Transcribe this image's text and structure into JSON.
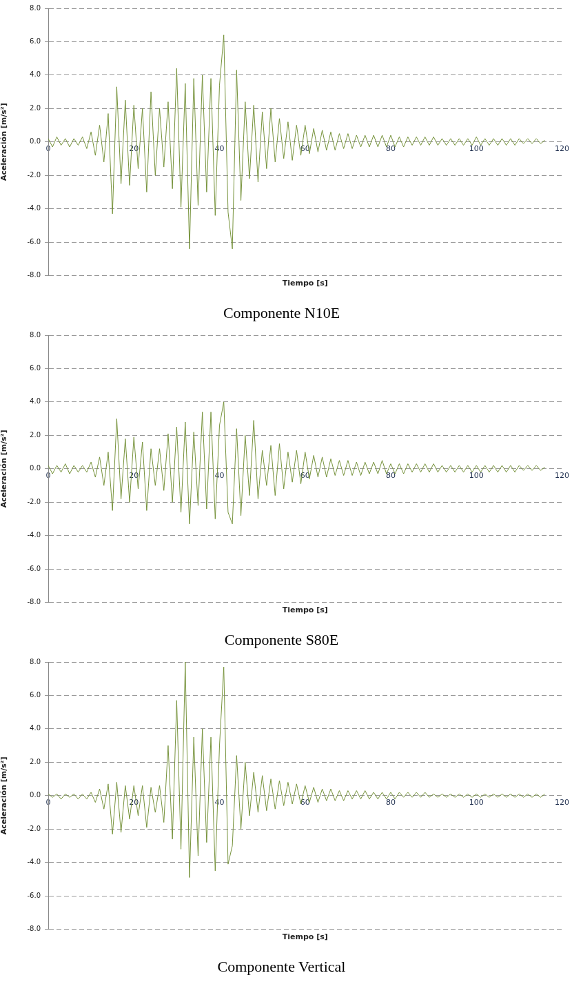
{
  "chart_data": [
    {
      "type": "line",
      "title": "Componente N10E",
      "xlabel": "Tiempo [s]",
      "ylabel": "Aceleración [m/s²]",
      "grid": "y",
      "marker": "none",
      "xlim": [
        0,
        120
      ],
      "xticks": [
        0,
        20,
        40,
        60,
        80,
        100,
        120
      ],
      "ylim": [
        -8,
        8
      ],
      "yticks": [
        {
          "value": -8,
          "label": "-8.0"
        },
        {
          "value": -6,
          "label": "-6.0"
        },
        {
          "value": -4,
          "label": "-4.0"
        },
        {
          "value": -2,
          "label": "-2.0"
        },
        {
          "value": 0,
          "label": "0.0"
        },
        {
          "value": 2,
          "label": "2.0"
        },
        {
          "value": 4,
          "label": "4.0"
        },
        {
          "value": 6,
          "label": "6.0"
        },
        {
          "value": 8,
          "label": "8.0"
        }
      ],
      "x": [
        0,
        1,
        2,
        3,
        4,
        5,
        6,
        7,
        8,
        9,
        10,
        11,
        12,
        13,
        14,
        15,
        16,
        17,
        18,
        19,
        20,
        21,
        22,
        23,
        24,
        25,
        26,
        27,
        28,
        29,
        30,
        31,
        32,
        33,
        34,
        35,
        36,
        37,
        38,
        39,
        40,
        41,
        42,
        43,
        44,
        45,
        46,
        47,
        48,
        49,
        50,
        51,
        52,
        53,
        54,
        55,
        56,
        57,
        58,
        59,
        60,
        61,
        62,
        63,
        64,
        65,
        66,
        67,
        68,
        69,
        70,
        71,
        72,
        73,
        74,
        75,
        76,
        77,
        78,
        79,
        80,
        81,
        82,
        83,
        84,
        85,
        86,
        87,
        88,
        89,
        90,
        91,
        92,
        93,
        94,
        95,
        96,
        97,
        98,
        99,
        100,
        101,
        102,
        103,
        104,
        105,
        106,
        107,
        108,
        109,
        110,
        111,
        112,
        113,
        114,
        115,
        116
      ],
      "series": [
        {
          "color": "#77933c",
          "values": [
            0.2,
            -0.3,
            0.3,
            -0.2,
            0.2,
            -0.3,
            0.2,
            -0.2,
            0.3,
            -0.4,
            0.6,
            -0.8,
            1.0,
            -1.2,
            1.7,
            -4.3,
            3.3,
            -2.5,
            2.5,
            -2.6,
            2.2,
            -1.6,
            2.0,
            -3.0,
            3.0,
            -2.0,
            2.0,
            -1.5,
            2.4,
            -2.8,
            4.4,
            -3.9,
            3.5,
            -6.4,
            3.8,
            -3.8,
            4.0,
            -3.0,
            3.8,
            -4.4,
            3.4,
            6.4,
            -4.2,
            -6.4,
            4.3,
            -3.5,
            2.4,
            -2.2,
            2.2,
            -2.4,
            1.8,
            -1.6,
            2.0,
            -1.2,
            1.4,
            -1.0,
            1.2,
            -1.1,
            1.0,
            -0.8,
            1.0,
            -0.7,
            0.8,
            -0.6,
            0.7,
            -0.5,
            0.6,
            -0.5,
            0.5,
            -0.4,
            0.5,
            -0.4,
            0.4,
            -0.3,
            0.4,
            -0.3,
            0.4,
            -0.3,
            0.4,
            -0.3,
            0.4,
            -0.3,
            0.3,
            -0.3,
            0.3,
            -0.2,
            0.3,
            -0.2,
            0.3,
            -0.2,
            0.3,
            -0.2,
            0.2,
            -0.2,
            0.2,
            -0.2,
            0.2,
            -0.2,
            0.2,
            -0.2,
            0.3,
            -0.2,
            0.2,
            -0.2,
            0.2,
            -0.2,
            0.2,
            -0.2,
            0.2,
            -0.2,
            0.2,
            -0.1,
            0.2,
            -0.1,
            0.2,
            -0.1,
            0.1
          ]
        }
      ]
    },
    {
      "type": "line",
      "title": "Componente S80E",
      "xlabel": "Tiempo [s]",
      "ylabel": "Aceleración [m/s²]",
      "grid": "y",
      "marker": "none",
      "xlim": [
        0,
        120
      ],
      "xticks": [
        0,
        20,
        40,
        60,
        80,
        100,
        120
      ],
      "ylim": [
        -8,
        8
      ],
      "yticks": [
        {
          "value": -8,
          "label": "-8.0"
        },
        {
          "value": -6,
          "label": "-6.0"
        },
        {
          "value": -4,
          "label": "-4.0"
        },
        {
          "value": -2,
          "label": "-2.0"
        },
        {
          "value": 0,
          "label": "0.0"
        },
        {
          "value": 2,
          "label": "2.0"
        },
        {
          "value": 4,
          "label": "4.0"
        },
        {
          "value": 6,
          "label": "6.0"
        },
        {
          "value": 8,
          "label": "8.0"
        }
      ],
      "x": [
        0,
        1,
        2,
        3,
        4,
        5,
        6,
        7,
        8,
        9,
        10,
        11,
        12,
        13,
        14,
        15,
        16,
        17,
        18,
        19,
        20,
        21,
        22,
        23,
        24,
        25,
        26,
        27,
        28,
        29,
        30,
        31,
        32,
        33,
        34,
        35,
        36,
        37,
        38,
        39,
        40,
        41,
        42,
        43,
        44,
        45,
        46,
        47,
        48,
        49,
        50,
        51,
        52,
        53,
        54,
        55,
        56,
        57,
        58,
        59,
        60,
        61,
        62,
        63,
        64,
        65,
        66,
        67,
        68,
        69,
        70,
        71,
        72,
        73,
        74,
        75,
        76,
        77,
        78,
        79,
        80,
        81,
        82,
        83,
        84,
        85,
        86,
        87,
        88,
        89,
        90,
        91,
        92,
        93,
        94,
        95,
        96,
        97,
        98,
        99,
        100,
        101,
        102,
        103,
        104,
        105,
        106,
        107,
        108,
        109,
        110,
        111,
        112,
        113,
        114,
        115,
        116
      ],
      "series": [
        {
          "color": "#77933c",
          "values": [
            0.2,
            -0.3,
            0.2,
            -0.2,
            0.3,
            -0.3,
            0.2,
            -0.2,
            0.2,
            -0.2,
            0.4,
            -0.5,
            0.7,
            -1.0,
            1.0,
            -2.5,
            3.0,
            -1.8,
            1.8,
            -2.0,
            1.9,
            -1.2,
            1.6,
            -2.5,
            1.2,
            -1.0,
            1.2,
            -1.3,
            2.1,
            -2.0,
            2.5,
            -2.6,
            2.8,
            -3.3,
            2.2,
            -2.2,
            3.4,
            -2.4,
            3.4,
            -3.0,
            2.6,
            4.0,
            -2.6,
            -3.3,
            2.4,
            -2.8,
            2.0,
            -1.6,
            2.9,
            -1.8,
            1.1,
            -1.0,
            1.4,
            -1.6,
            1.5,
            -1.2,
            1.0,
            -0.8,
            1.1,
            -0.9,
            1.0,
            -0.6,
            0.8,
            -0.5,
            0.7,
            -0.5,
            0.6,
            -0.4,
            0.5,
            -0.4,
            0.5,
            -0.4,
            0.4,
            -0.4,
            0.4,
            -0.3,
            0.4,
            -0.3,
            0.5,
            -0.3,
            0.3,
            -0.3,
            0.3,
            -0.3,
            0.3,
            -0.2,
            0.3,
            -0.2,
            0.3,
            -0.2,
            0.3,
            -0.2,
            0.2,
            -0.2,
            0.2,
            -0.2,
            0.2,
            -0.2,
            0.2,
            -0.2,
            0.2,
            -0.2,
            0.2,
            -0.2,
            0.2,
            -0.2,
            0.2,
            -0.2,
            0.2,
            -0.2,
            0.2,
            -0.1,
            0.2,
            -0.1,
            0.2,
            -0.1,
            0.1
          ]
        }
      ]
    },
    {
      "type": "line",
      "title": "Componente Vertical",
      "xlabel": "Tiempo [s]",
      "ylabel": "Aceleración [m/s²]",
      "grid": "y",
      "marker": "none",
      "xlim": [
        0,
        120
      ],
      "xticks": [
        0,
        20,
        40,
        60,
        80,
        100,
        120
      ],
      "ylim": [
        -8,
        8
      ],
      "yticks": [
        {
          "value": -8,
          "label": "-8.0"
        },
        {
          "value": -6,
          "label": "-6.0"
        },
        {
          "value": -4,
          "label": "-4.0"
        },
        {
          "value": -2,
          "label": "-2.0"
        },
        {
          "value": 0,
          "label": "0.0"
        },
        {
          "value": 2,
          "label": "2.0"
        },
        {
          "value": 4,
          "label": "4.0"
        },
        {
          "value": 6,
          "label": "6.0"
        },
        {
          "value": 8,
          "label": "8.0"
        }
      ],
      "x": [
        0,
        1,
        2,
        3,
        4,
        5,
        6,
        7,
        8,
        9,
        10,
        11,
        12,
        13,
        14,
        15,
        16,
        17,
        18,
        19,
        20,
        21,
        22,
        23,
        24,
        25,
        26,
        27,
        28,
        29,
        30,
        31,
        32,
        33,
        34,
        35,
        36,
        37,
        38,
        39,
        40,
        41,
        42,
        43,
        44,
        45,
        46,
        47,
        48,
        49,
        50,
        51,
        52,
        53,
        54,
        55,
        56,
        57,
        58,
        59,
        60,
        61,
        62,
        63,
        64,
        65,
        66,
        67,
        68,
        69,
        70,
        71,
        72,
        73,
        74,
        75,
        76,
        77,
        78,
        79,
        80,
        81,
        82,
        83,
        84,
        85,
        86,
        87,
        88,
        89,
        90,
        91,
        92,
        93,
        94,
        95,
        96,
        97,
        98,
        99,
        100,
        101,
        102,
        103,
        104,
        105,
        106,
        107,
        108,
        109,
        110,
        111,
        112,
        113,
        114,
        115,
        116
      ],
      "series": [
        {
          "color": "#77933c",
          "values": [
            0.1,
            -0.1,
            0.1,
            -0.2,
            0.1,
            -0.1,
            0.1,
            -0.2,
            0.1,
            -0.2,
            0.2,
            -0.4,
            0.4,
            -0.8,
            0.7,
            -2.3,
            0.8,
            -2.2,
            0.6,
            -1.4,
            0.6,
            -1.2,
            0.6,
            -1.9,
            0.5,
            -1.0,
            0.6,
            -1.6,
            3.0,
            -2.6,
            5.7,
            -3.2,
            8.0,
            -4.9,
            3.5,
            -3.6,
            4.0,
            -2.8,
            3.5,
            -4.5,
            3.0,
            7.7,
            -4.1,
            -3.0,
            2.4,
            -2.0,
            2.0,
            -1.2,
            1.4,
            -1.0,
            1.2,
            -0.9,
            1.0,
            -0.8,
            0.9,
            -0.6,
            0.8,
            -0.5,
            0.7,
            -0.5,
            0.6,
            -0.4,
            0.5,
            -0.4,
            0.4,
            -0.3,
            0.4,
            -0.3,
            0.3,
            -0.3,
            0.3,
            -0.2,
            0.3,
            -0.2,
            0.3,
            -0.2,
            0.2,
            -0.2,
            0.2,
            -0.2,
            0.2,
            -0.2,
            0.2,
            -0.1,
            0.2,
            -0.1,
            0.2,
            -0.1,
            0.2,
            -0.1,
            0.1,
            -0.1,
            0.1,
            -0.1,
            0.1,
            -0.1,
            0.1,
            -0.1,
            0.1,
            -0.1,
            0.1,
            -0.1,
            0.1,
            -0.1,
            0.1,
            -0.1,
            0.1,
            -0.1,
            0.1,
            -0.1,
            0.1,
            -0.1,
            0.1,
            -0.1,
            0.1,
            -0.1,
            0.1
          ]
        }
      ]
    }
  ]
}
